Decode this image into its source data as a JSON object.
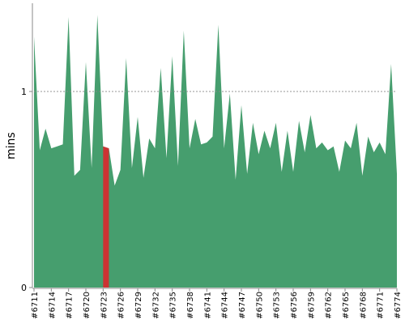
{
  "chart_data": {
    "type": "area",
    "y_label": "mins",
    "categories": [
      "#6711",
      null,
      null,
      "#6714",
      null,
      null,
      "#6717",
      null,
      null,
      "#6720",
      null,
      null,
      "#6723",
      null,
      null,
      "#6726",
      null,
      null,
      "#6729",
      null,
      null,
      "#6732",
      null,
      null,
      "#6735",
      null,
      null,
      "#6738",
      null,
      null,
      "#6741",
      null,
      null,
      "#6744",
      null,
      null,
      "#6747",
      null,
      null,
      "#6750",
      null,
      null,
      "#6753",
      null,
      null,
      "#6756",
      null,
      null,
      "#6759",
      null,
      null,
      "#6762",
      null,
      null,
      "#6765",
      null,
      null,
      "#6768",
      null,
      null,
      "#6771",
      null,
      null,
      "#6774"
    ],
    "values": [
      1.28,
      0.7,
      0.81,
      0.71,
      0.72,
      0.73,
      1.38,
      0.57,
      0.6,
      1.15,
      0.61,
      1.39,
      0.72,
      0.71,
      0.52,
      0.6,
      1.17,
      0.61,
      0.87,
      0.56,
      0.76,
      0.71,
      1.12,
      0.66,
      1.18,
      0.62,
      1.31,
      0.71,
      0.86,
      0.73,
      0.74,
      0.77,
      1.34,
      0.71,
      0.99,
      0.55,
      0.93,
      0.58,
      0.84,
      0.68,
      0.8,
      0.71,
      0.84,
      0.59,
      0.8,
      0.59,
      0.85,
      0.69,
      0.88,
      0.71,
      0.74,
      0.7,
      0.72,
      0.59,
      0.75,
      0.71,
      0.84,
      0.57,
      0.77,
      0.69,
      0.74,
      0.68,
      1.14,
      0.58
    ],
    "color": "#469e6e",
    "failed_color": "#cc3333",
    "failed_segments": [
      12
    ],
    "ylim": [
      0,
      1.45
    ],
    "yticks": [
      0,
      1
    ],
    "grid_ticks": [
      1
    ]
  }
}
